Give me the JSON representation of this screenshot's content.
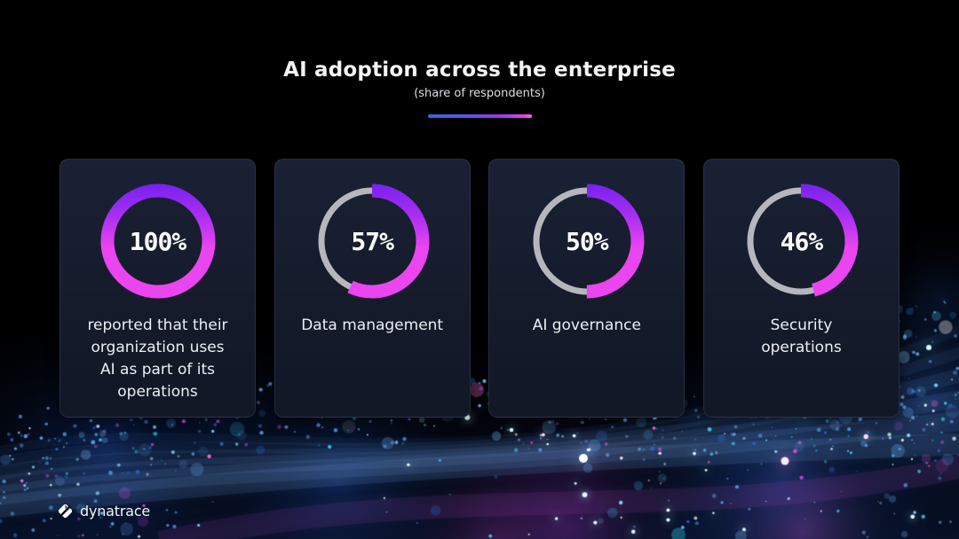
{
  "header": {
    "title": "AI adoption across the enterprise",
    "subtitle": "(share of respondents)"
  },
  "chart_data": {
    "type": "pie",
    "variant": "donut",
    "title": "AI adoption across the enterprise",
    "subtitle": "(share of respondents)",
    "unit": "%",
    "categories": [
      "reported that their organization uses AI as part of its operations",
      "Data management",
      "AI governance",
      "Security operations"
    ],
    "values": [
      100,
      57,
      50,
      46
    ],
    "colors": {
      "progress_gradient_start": "#ea45ee",
      "progress_gradient_end": "#7b22f0",
      "track": "#b5b7bd",
      "accent_bar_start": "#2e6ae8",
      "accent_bar_end": "#ff5ef2",
      "card_background": "#151b2b"
    }
  },
  "cards": [
    {
      "percent": "100%",
      "value": 100,
      "label": "reported that their\norganization uses\nAI as part of its\noperations"
    },
    {
      "percent": "57%",
      "value": 57,
      "label": "Data management"
    },
    {
      "percent": "50%",
      "value": 50,
      "label": "AI governance"
    },
    {
      "percent": "46%",
      "value": 46,
      "label": "Security\noperations"
    }
  ],
  "footer": {
    "brand": "dynatrace"
  }
}
